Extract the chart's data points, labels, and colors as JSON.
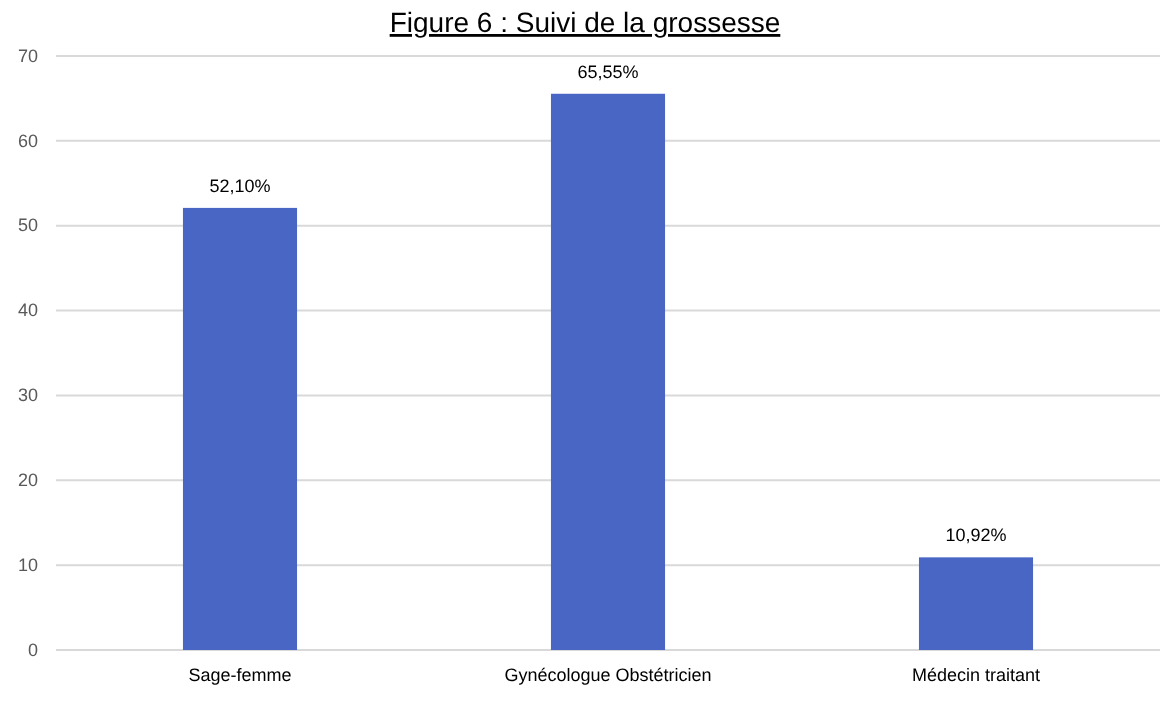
{
  "chart_data": {
    "type": "bar",
    "title": "Figure 6 : Suivi de la grossesse",
    "categories": [
      "Sage-femme",
      "Gynécologue Obstétricien",
      "Médecin traitant"
    ],
    "values": [
      52.1,
      65.55,
      10.92
    ],
    "value_labels": [
      "52,10%",
      "65,55%",
      "10,92%"
    ],
    "color": "#4a66c5",
    "ylim": [
      0,
      70
    ],
    "yticks": [
      0,
      10,
      20,
      30,
      40,
      50,
      60,
      70
    ],
    "grid": "y"
  }
}
